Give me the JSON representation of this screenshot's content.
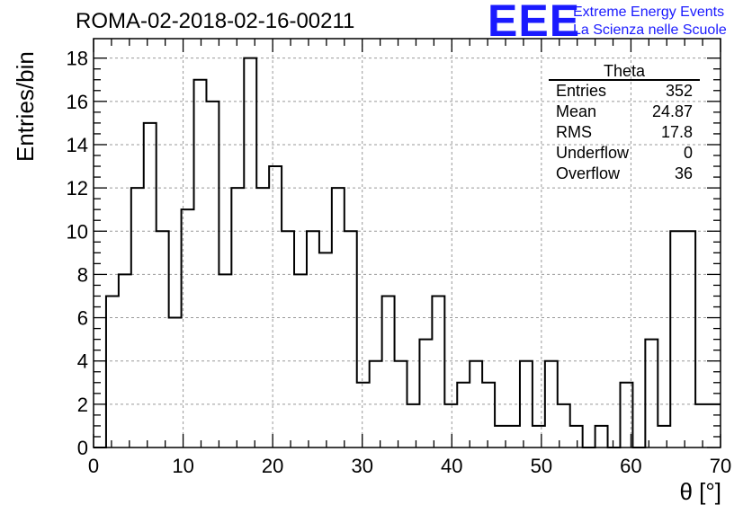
{
  "title": "ROMA-02-2018-02-16-00211",
  "logo": {
    "mark": "EEE",
    "line1": "Extreme Energy Events",
    "line2": "La Scienza nelle Scuole",
    "color": "#1a1aff"
  },
  "stats_box": {
    "title": "Theta",
    "rows": [
      {
        "label": "Entries",
        "value": "352"
      },
      {
        "label": "Mean",
        "value": "24.87"
      },
      {
        "label": "RMS",
        "value": "17.8"
      },
      {
        "label": "Underflow",
        "value": "0"
      },
      {
        "label": "Overflow",
        "value": "36"
      }
    ]
  },
  "chart_data": {
    "type": "bar",
    "subtype": "step-histogram",
    "xlabel": "θ [°]",
    "ylabel": "Entries/bin",
    "xlim": [
      0,
      70
    ],
    "ylim": [
      0,
      18.9
    ],
    "bin_width": 1.4,
    "x_ticks": [
      0,
      10,
      20,
      30,
      40,
      50,
      60,
      70
    ],
    "y_ticks": [
      0,
      2,
      4,
      6,
      8,
      10,
      12,
      14,
      16,
      18
    ],
    "grid": true,
    "values": [
      0,
      7,
      8,
      12,
      15,
      10,
      6,
      11,
      17,
      16,
      8,
      12,
      18,
      12,
      13,
      10,
      8,
      10,
      9,
      12,
      10,
      3,
      4,
      7,
      4,
      2,
      5,
      7,
      2,
      3,
      4,
      3,
      1,
      1,
      4,
      1,
      4,
      2,
      1,
      0,
      1,
      0,
      3,
      0,
      5,
      1,
      10,
      10,
      2,
      2
    ]
  }
}
